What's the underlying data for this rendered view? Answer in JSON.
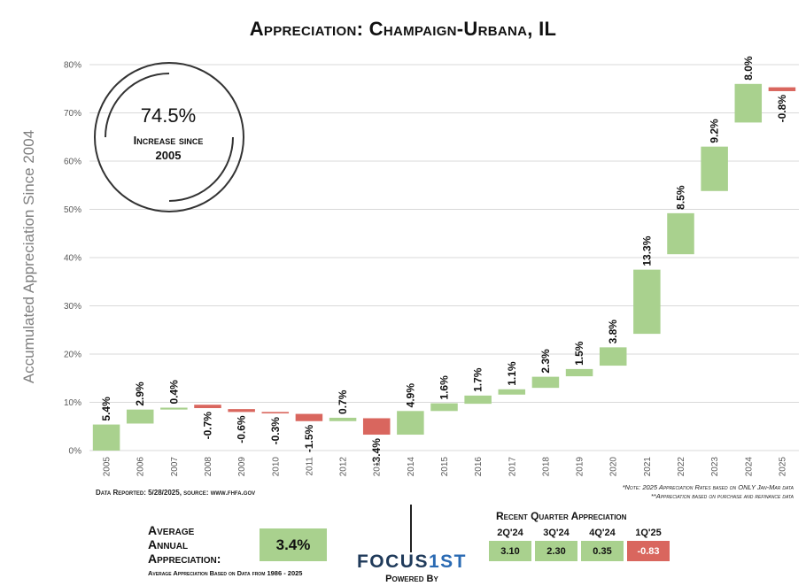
{
  "title": "Appreciation: Champaign-Urbana, IL",
  "y_axis_label": "Accumulated Appreciation Since 2004",
  "badge": {
    "value": "74.5%",
    "subtitle_line1": "Increase since",
    "subtitle_line2": "2005"
  },
  "source": "Data Reported: 5/28/2025, source: www.fhfa.gov",
  "notes": [
    "*Note: 2025 Appreciation Rates based on ONLY Jan-Mar data",
    "**Appreciation based on purchase and refinance data"
  ],
  "average": {
    "label_line1": "Average",
    "label_line2": "Annual",
    "label_line3": "Appreciation:",
    "value": "3.4%",
    "basis": "Average Appreciation Based on Data from 1986 - 2025"
  },
  "logo": {
    "main": "FOCUS",
    "accent": "1ST",
    "powered": "Powered By"
  },
  "recent_quarters": {
    "title": "Recent Quarter Appreciation",
    "items": [
      {
        "label": "2Q'24",
        "value": "3.10"
      },
      {
        "label": "3Q'24",
        "value": "2.30"
      },
      {
        "label": "4Q'24",
        "value": "0.35"
      },
      {
        "label": "1Q'25",
        "value": "-0.83"
      }
    ]
  },
  "colors": {
    "positive": "#a9d18e",
    "negative": "#d9665e",
    "grid": "#d9d9d9",
    "axis_text": "#595959"
  },
  "chart_data": {
    "type": "bar",
    "subtype": "waterfall",
    "title": "Appreciation: Champaign-Urbana, IL",
    "ylabel": "Accumulated Appreciation Since 2004",
    "ylim": [
      0,
      80
    ],
    "yticks": [
      0,
      10,
      20,
      30,
      40,
      50,
      60,
      70,
      80
    ],
    "ytick_labels": [
      "0%",
      "10%",
      "20%",
      "30%",
      "40%",
      "50%",
      "60%",
      "70%",
      "80%"
    ],
    "grid": true,
    "categories": [
      "2005",
      "2006",
      "2007",
      "2008",
      "2009",
      "2010",
      "2011",
      "2012",
      "2013",
      "2014",
      "2015",
      "2016",
      "2017",
      "2018",
      "2019",
      "2020",
      "2021",
      "2022",
      "2023",
      "2024",
      "2025"
    ],
    "tick_labels": [
      "2005",
      "2006",
      "2007",
      "2008",
      "2009",
      "2010",
      "2011",
      "2012",
      "2013",
      "2014",
      "2015",
      "2016",
      "2017",
      "2018",
      "2019",
      "2020",
      "2021",
      "2022",
      "2023",
      "2024",
      "2025"
    ],
    "values": [
      5.4,
      2.9,
      0.4,
      -0.7,
      -0.6,
      -0.3,
      -1.5,
      0.7,
      -3.4,
      4.9,
      1.6,
      1.7,
      1.1,
      2.3,
      1.5,
      3.8,
      13.3,
      8.5,
      9.2,
      8.0,
      -0.8
    ],
    "labels": [
      "5.4%",
      "2.9%",
      "0.4%",
      "-0.7%",
      "-0.6%",
      "-0.3%",
      "-1.5%",
      "0.7%",
      "-3.4%",
      "4.9%",
      "1.6%",
      "1.7%",
      "1.1%",
      "2.3%",
      "1.5%",
      "3.8%",
      "13.3%",
      "8.5%",
      "9.2%",
      "8.0%",
      "-0.8%"
    ],
    "cumulative_end": [
      5.4,
      8.5,
      8.9,
      8.8,
      8.0,
      7.7,
      6.1,
      6.8,
      3.3,
      8.2,
      9.8,
      11.4,
      12.7,
      15.3,
      16.9,
      21.4,
      37.5,
      49.2,
      63.0,
      76.0,
      74.5
    ]
  }
}
